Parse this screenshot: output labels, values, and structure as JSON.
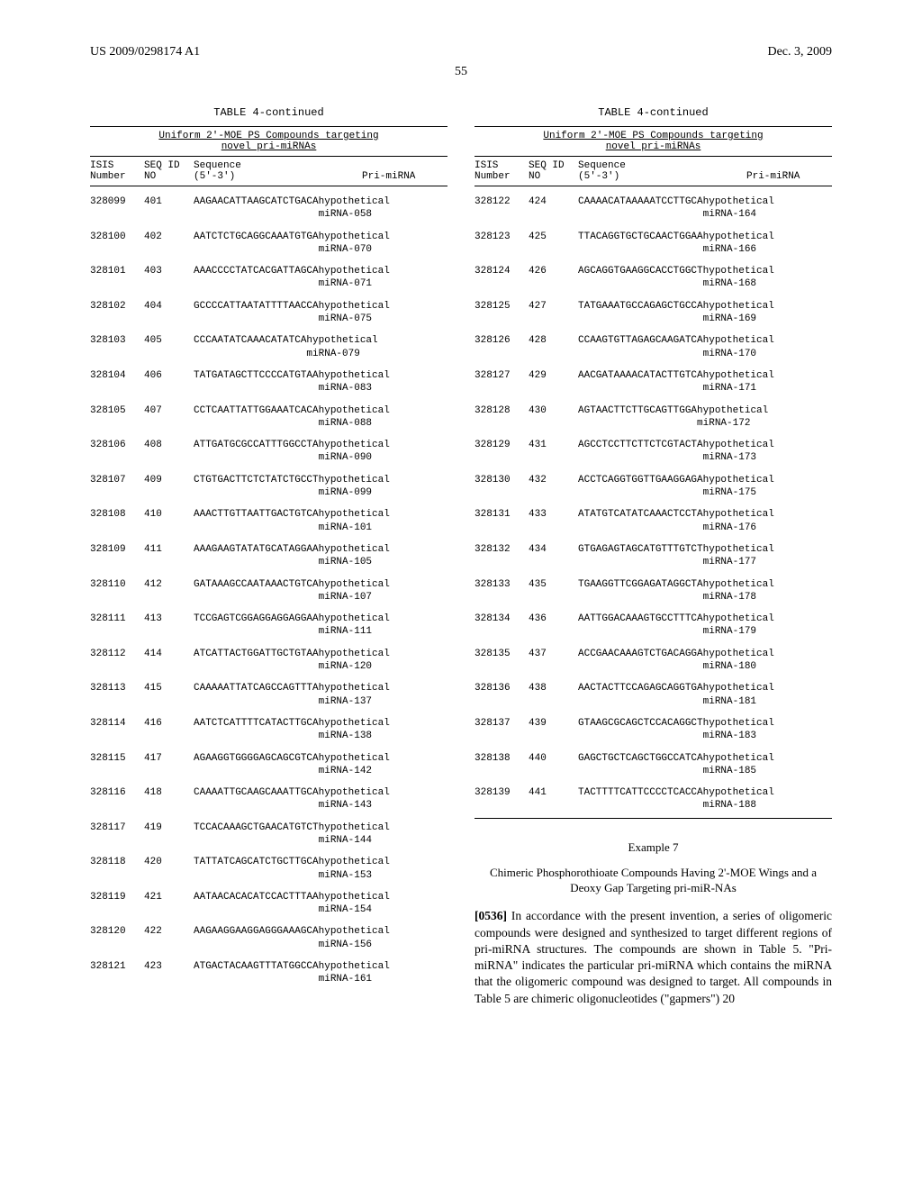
{
  "header": {
    "patent_number": "US 2009/0298174 A1",
    "date": "Dec. 3, 2009",
    "page": "55"
  },
  "table": {
    "title": "TABLE 4-continued",
    "subtitle1": "Uniform 2'-MOE PS Compounds targeting",
    "subtitle2": "novel pri-miRNAs",
    "headers": {
      "isis1": "ISIS",
      "isis2": "Number",
      "seq1": "SEQ ID",
      "seq2": "NO",
      "sequence1": "Sequence",
      "sequence2": "(5'-3')",
      "mirna": "Pri-miRNA"
    }
  },
  "left_rows": [
    {
      "isis": "328099",
      "seq": "401",
      "sequence": "AAGAACATTAAGCATCTGACA",
      "mirna": "miRNA-058"
    },
    {
      "isis": "328100",
      "seq": "402",
      "sequence": "AATCTCTGCAGGCAAATGTGA",
      "mirna": "miRNA-070"
    },
    {
      "isis": "328101",
      "seq": "403",
      "sequence": "AAACCCCTATCACGATTAGCA",
      "mirna": "miRNA-071"
    },
    {
      "isis": "328102",
      "seq": "404",
      "sequence": "GCCCCATTAATATTTTAACCA",
      "mirna": "miRNA-075"
    },
    {
      "isis": "328103",
      "seq": "405",
      "sequence": "CCCAATATCAAACATATCA",
      "mirna": "miRNA-079"
    },
    {
      "isis": "328104",
      "seq": "406",
      "sequence": "TATGATAGCTTCCCCATGTAA",
      "mirna": "miRNA-083"
    },
    {
      "isis": "328105",
      "seq": "407",
      "sequence": "CCTCAATTATTGGAAATCACA",
      "mirna": "miRNA-088"
    },
    {
      "isis": "328106",
      "seq": "408",
      "sequence": "ATTGATGCGCCATTTGGCCTA",
      "mirna": "miRNA-090"
    },
    {
      "isis": "328107",
      "seq": "409",
      "sequence": "CTGTGACTTCTCTATCTGCCT",
      "mirna": "miRNA-099"
    },
    {
      "isis": "328108",
      "seq": "410",
      "sequence": "AAACTTGTTAATTGACTGTCA",
      "mirna": "miRNA-101"
    },
    {
      "isis": "328109",
      "seq": "411",
      "sequence": "AAAGAAGTATATGCATAGGAA",
      "mirna": "miRNA-105"
    },
    {
      "isis": "328110",
      "seq": "412",
      "sequence": "GATAAAGCCAATAAACTGTCA",
      "mirna": "miRNA-107"
    },
    {
      "isis": "328111",
      "seq": "413",
      "sequence": "TCCGAGTCGGAGGAGGAGGAA",
      "mirna": "miRNA-111"
    },
    {
      "isis": "328112",
      "seq": "414",
      "sequence": "ATCATTACTGGATTGCTGTAA",
      "mirna": "miRNA-120"
    },
    {
      "isis": "328113",
      "seq": "415",
      "sequence": "CAAAAATTATCAGCCAGTTTA",
      "mirna": "miRNA-137"
    },
    {
      "isis": "328114",
      "seq": "416",
      "sequence": "AATCTCATTTTCATACTTGCA",
      "mirna": "miRNA-138"
    },
    {
      "isis": "328115",
      "seq": "417",
      "sequence": "AGAAGGTGGGGAGCAGCGTCA",
      "mirna": "miRNA-142"
    },
    {
      "isis": "328116",
      "seq": "418",
      "sequence": "CAAAATTGCAAGCAAATTGCA",
      "mirna": "miRNA-143"
    },
    {
      "isis": "328117",
      "seq": "419",
      "sequence": "TCCACAAAGCTGAACATGTCT",
      "mirna": "miRNA-144"
    },
    {
      "isis": "328118",
      "seq": "420",
      "sequence": "TATTATCAGCATCTGCTTGCA",
      "mirna": "miRNA-153"
    },
    {
      "isis": "328119",
      "seq": "421",
      "sequence": "AATAACACACATCCACTTTAA",
      "mirna": "miRNA-154"
    },
    {
      "isis": "328120",
      "seq": "422",
      "sequence": "AAGAAGGAAGGAGGGAAAGCA",
      "mirna": "miRNA-156"
    },
    {
      "isis": "328121",
      "seq": "423",
      "sequence": "ATGACTACAAGTTTATGGCCA",
      "mirna": "miRNA-161"
    }
  ],
  "right_rows": [
    {
      "isis": "328122",
      "seq": "424",
      "sequence": "CAAAACATAAAAATCCTTGCA",
      "mirna": "miRNA-164"
    },
    {
      "isis": "328123",
      "seq": "425",
      "sequence": "TTACAGGTGCTGCAACTGGAA",
      "mirna": "miRNA-166"
    },
    {
      "isis": "328124",
      "seq": "426",
      "sequence": "AGCAGGTGAAGGCACCTGGCT",
      "mirna": "miRNA-168"
    },
    {
      "isis": "328125",
      "seq": "427",
      "sequence": "TATGAAATGCCAGAGCTGCCA",
      "mirna": "miRNA-169"
    },
    {
      "isis": "328126",
      "seq": "428",
      "sequence": "CCAAGTGTTAGAGCAAGATCA",
      "mirna": "miRNA-170"
    },
    {
      "isis": "328127",
      "seq": "429",
      "sequence": "AACGATAAAACATACTTGTCA",
      "mirna": "miRNA-171"
    },
    {
      "isis": "328128",
      "seq": "430",
      "sequence": "AGTAACTTCTTGCAGTTGGA",
      "mirna": "miRNA-172"
    },
    {
      "isis": "328129",
      "seq": "431",
      "sequence": "AGCCTCCTTCTTCTCGTACTA",
      "mirna": "miRNA-173"
    },
    {
      "isis": "328130",
      "seq": "432",
      "sequence": "ACCTCAGGTGGTTGAAGGAGA",
      "mirna": "miRNA-175"
    },
    {
      "isis": "328131",
      "seq": "433",
      "sequence": "ATATGTCATATCAAACTCCTA",
      "mirna": "miRNA-176"
    },
    {
      "isis": "328132",
      "seq": "434",
      "sequence": "GTGAGAGTAGCATGTTTGTCT",
      "mirna": "miRNA-177"
    },
    {
      "isis": "328133",
      "seq": "435",
      "sequence": "TGAAGGTTCGGAGATAGGCTA",
      "mirna": "miRNA-178"
    },
    {
      "isis": "328134",
      "seq": "436",
      "sequence": "AATTGGACAAAGTGCCTTTCA",
      "mirna": "miRNA-179"
    },
    {
      "isis": "328135",
      "seq": "437",
      "sequence": "ACCGAACAAAGTCTGACAGGA",
      "mirna": "miRNA-180"
    },
    {
      "isis": "328136",
      "seq": "438",
      "sequence": "AACTACTTCCAGAGCAGGTGA",
      "mirna": "miRNA-181"
    },
    {
      "isis": "328137",
      "seq": "439",
      "sequence": "GTAAGCGCAGCTCCACAGGCT",
      "mirna": "miRNA-183"
    },
    {
      "isis": "328138",
      "seq": "440",
      "sequence": "GAGCTGCTCAGCTGGCCATCA",
      "mirna": "miRNA-185"
    },
    {
      "isis": "328139",
      "seq": "441",
      "sequence": "TACTTTTCATTCCCCTCACCA",
      "mirna": "miRNA-188"
    }
  ],
  "hypothetical": "hypothetical",
  "example": {
    "title": "Example 7",
    "subtitle": "Chimeric Phosphorothioate Compounds Having 2'-MOE Wings and a Deoxy Gap Targeting pri-miR-NAs",
    "para_num": "[0536]",
    "para_text": "In accordance with the present invention, a series of oligomeric compounds were designed and synthesized to target different regions of pri-miRNA structures. The compounds are shown in Table 5. \"Pri-miRNA\" indicates the particular pri-miRNA which contains the miRNA that the oligomeric compound was designed to target. All compounds in Table 5 are chimeric oligonucleotides (\"gapmers\") 20"
  }
}
